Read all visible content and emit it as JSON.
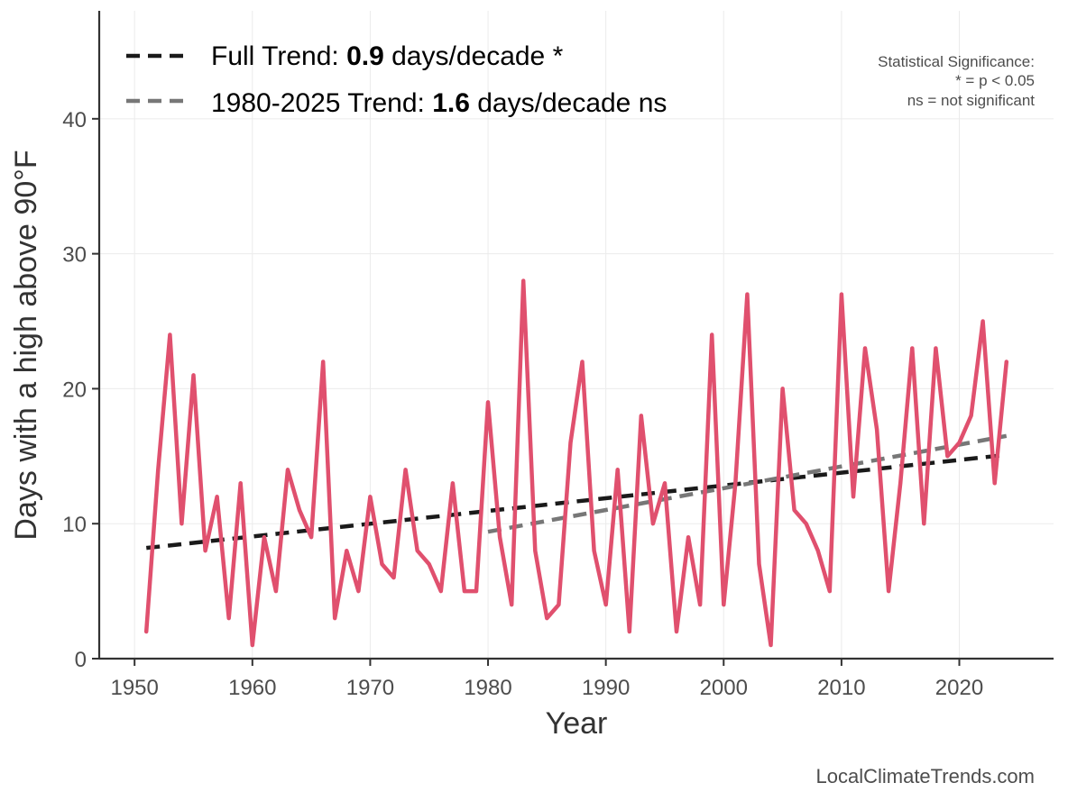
{
  "chart_data": {
    "type": "line",
    "xlabel": "Year",
    "ylabel": "Days with a high above 90°F",
    "xlim": [
      1947,
      2028
    ],
    "ylim": [
      0,
      48
    ],
    "xticks": [
      1950,
      1960,
      1970,
      1980,
      1990,
      2000,
      2010,
      2020
    ],
    "yticks": [
      0,
      10,
      20,
      30,
      40
    ],
    "grid": true,
    "legend_position": "top-left",
    "series": [
      {
        "name": "Days with a high above 90°F",
        "color": "#e0506e",
        "x": [
          1951,
          1952,
          1953,
          1954,
          1955,
          1956,
          1957,
          1958,
          1959,
          1960,
          1961,
          1962,
          1963,
          1964,
          1965,
          1966,
          1967,
          1968,
          1969,
          1970,
          1971,
          1972,
          1973,
          1974,
          1975,
          1976,
          1977,
          1978,
          1979,
          1980,
          1981,
          1982,
          1983,
          1984,
          1985,
          1986,
          1987,
          1988,
          1989,
          1990,
          1991,
          1992,
          1993,
          1994,
          1995,
          1996,
          1997,
          1998,
          1999,
          2000,
          2001,
          2002,
          2003,
          2004,
          2005,
          2006,
          2007,
          2008,
          2009,
          2010,
          2011,
          2012,
          2013,
          2014,
          2015,
          2016,
          2017,
          2018,
          2019,
          2020,
          2021,
          2022,
          2023,
          2024
        ],
        "values": [
          2,
          14,
          24,
          10,
          21,
          8,
          12,
          3,
          13,
          1,
          9,
          5,
          14,
          11,
          9,
          22,
          3,
          8,
          5,
          12,
          7,
          6,
          14,
          8,
          7,
          5,
          13,
          5,
          5,
          19,
          9,
          4,
          28,
          8,
          3,
          4,
          16,
          22,
          8,
          4,
          14,
          2,
          18,
          10,
          13,
          2,
          9,
          4,
          24,
          4,
          13,
          27,
          7,
          1,
          20,
          11,
          10,
          8,
          5,
          27,
          12,
          23,
          17,
          5,
          13,
          23,
          10,
          23,
          15,
          16,
          18,
          25,
          13,
          22
        ]
      }
    ],
    "trend_lines": [
      {
        "label_prefix": "Full Trend: ",
        "value": "0.9",
        "label_suffix": " days/decade *",
        "color": "#1a1a1a",
        "x": [
          1951,
          2024
        ],
        "y": [
          8.2,
          15.1
        ]
      },
      {
        "label_prefix": "1980-2025 Trend: ",
        "value": "1.6",
        "label_suffix": " days/decade ns",
        "color": "#777777",
        "x": [
          1980,
          2024
        ],
        "y": [
          9.4,
          16.5
        ]
      }
    ],
    "significance_note": [
      "Statistical Significance:",
      "* = p < 0.05",
      "ns = not significant"
    ],
    "credit": "LocalClimateTrends.com"
  }
}
